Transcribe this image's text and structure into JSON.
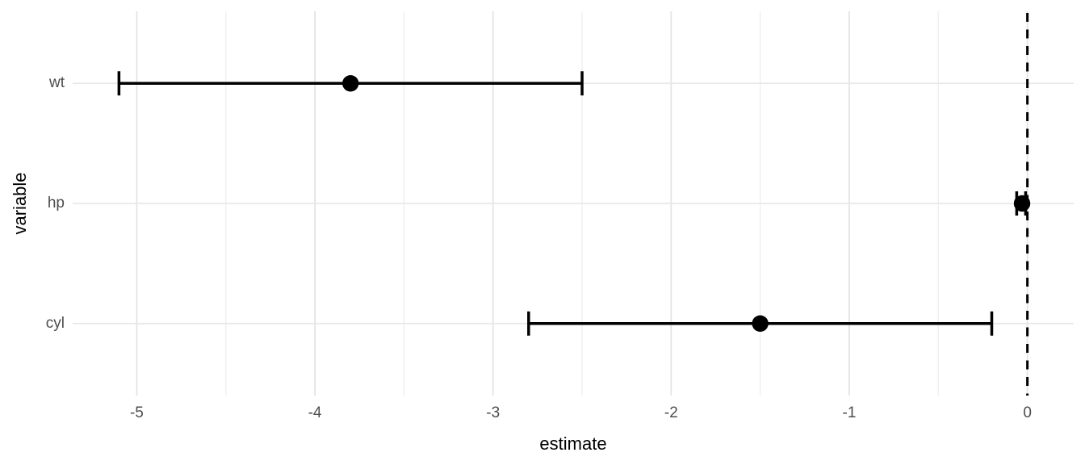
{
  "chart_data": {
    "type": "scatter",
    "subtype": "coefficient-plot-with-error-bars",
    "title": "",
    "xlabel": "estimate",
    "ylabel": "variable",
    "categories_top_to_bottom": [
      "wt",
      "hp",
      "cyl"
    ],
    "points": [
      {
        "variable": "wt",
        "estimate": -3.8,
        "conf_low": -5.1,
        "conf_high": -2.5
      },
      {
        "variable": "hp",
        "estimate": -0.03,
        "conf_low": -0.06,
        "conf_high": -0.01
      },
      {
        "variable": "cyl",
        "estimate": -1.5,
        "conf_low": -2.8,
        "conf_high": -0.2
      }
    ],
    "x_tick_labels": [
      "-5",
      "-4",
      "-3",
      "-2",
      "-1",
      "0"
    ],
    "x_tick_values": [
      -5,
      -4,
      -3,
      -2,
      -1,
      0
    ],
    "xlim": [
      -5.36,
      0.26
    ],
    "reference_line": {
      "x": 0,
      "linetype": "dashed"
    },
    "grid": {
      "major_x": true,
      "minor_x": true,
      "major_y": true,
      "minor_y": false
    },
    "legend": "none"
  },
  "colors": {
    "point": "#000000",
    "errorbar": "#000000",
    "reference_line": "#000000",
    "grid_major": "#e4e4e4",
    "grid_minor": "#efefef",
    "grid_row": "#e8e8e8",
    "axis_text": "#4d4d4d",
    "axis_title": "#000000",
    "background": "#ffffff"
  }
}
